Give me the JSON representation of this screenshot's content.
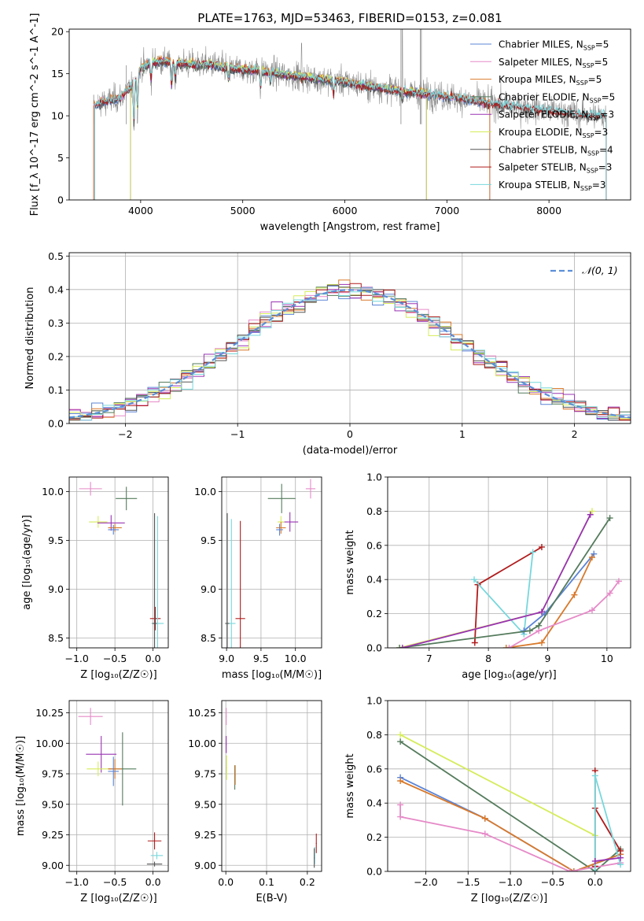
{
  "figure_title": "PLATE=1763, MJD=53463, FIBERID=0153, z=0.081",
  "model_colors": {
    "Chabrier MILES": "#5b84d6",
    "Salpeter MILES": "#e68ac8",
    "Kroupa MILES": "#d9792a",
    "Chabrier ELODIE": "#547b5c",
    "Salpeter ELODIE": "#9933b3",
    "Kroupa ELODIE": "#d6ec5a",
    "Chabrier STELIB": "#555555",
    "Salpeter STELIB": "#b01c1c",
    "Kroupa STELIB": "#77d7dc",
    "data": "#888888"
  },
  "chart_data": [
    {
      "id": "spectrum",
      "type": "line",
      "title": "PLATE=1763, MJD=53463, FIBERID=0153, z=0.081",
      "xlabel": "wavelength [Angstrom, rest frame]",
      "ylabel": "Flux [f_λ 10^-17 erg cm^-2 s^-1 A^-1]",
      "xlim": [
        3300,
        8800
      ],
      "ylim": [
        0,
        20.3
      ],
      "xticks": [
        4000,
        5000,
        6000,
        7000,
        8000
      ],
      "yticks": [
        0,
        5,
        10,
        15,
        20
      ],
      "grid": false,
      "legend_position": "top-right",
      "legend": [
        {
          "base": "Chabrier MILES, N",
          "n": "5",
          "color": "#5b84d6"
        },
        {
          "base": "Salpeter MILES, N",
          "n": "5",
          "color": "#e68ac8"
        },
        {
          "base": "Kroupa MILES, N",
          "n": "5",
          "color": "#d9792a"
        },
        {
          "base": "Chabrier ELODIE, N",
          "n": "5",
          "color": "#547b5c"
        },
        {
          "base": "Salpeter ELODIE, N",
          "n": "3",
          "color": "#9933b3"
        },
        {
          "base": "Kroupa ELODIE, N",
          "n": "3",
          "color": "#d6ec5a"
        },
        {
          "base": "Chabrier STELIB, N",
          "n": "4",
          "color": "#555555"
        },
        {
          "base": "Salpeter STELIB, N",
          "n": "3",
          "color": "#b01c1c"
        },
        {
          "base": "Kroupa STELIB, N",
          "n": "3",
          "color": "#77d7dc"
        }
      ],
      "legend_sub": "SSP",
      "continuum": {
        "x": [
          3500,
          3600,
          3700,
          3800,
          3900,
          4000,
          4100,
          4200,
          4300,
          4400,
          4500,
          4600,
          4700,
          4800,
          4900,
          5000,
          5200,
          5400,
          5600,
          5800,
          6000,
          6200,
          6400,
          6600,
          6800,
          7000,
          7200,
          7400,
          7600,
          7800,
          8000,
          8200,
          8400,
          8600,
          8800
        ],
        "y": [
          11.0,
          11.5,
          11.8,
          12.2,
          13.3,
          15.6,
          16.3,
          16.5,
          16.4,
          16.2,
          16.1,
          16.1,
          16.1,
          15.8,
          15.6,
          15.5,
          15.3,
          14.9,
          14.6,
          14.3,
          14.0,
          13.6,
          13.2,
          12.9,
          12.6,
          12.3,
          11.9,
          11.5,
          11.2,
          10.9,
          10.6,
          10.3,
          10.1,
          9.9,
          9.8
        ]
      },
      "data_series_label": "data"
    },
    {
      "id": "residuals",
      "type": "line",
      "xlabel": "(data-model)/error",
      "ylabel": "Normed distribution",
      "xlim": [
        -2.5,
        2.5
      ],
      "ylim": [
        0,
        0.51
      ],
      "xticks": [
        -2,
        -1,
        0,
        1,
        2
      ],
      "yticks": [
        0.0,
        0.1,
        0.2,
        0.3,
        0.4,
        0.5
      ],
      "grid": true,
      "legend_position": "top-right",
      "normal_label": "𝒩(0, 1)",
      "normal_color": "#5b8fd8"
    },
    {
      "id": "age-Z",
      "type": "scatter",
      "xlabel": "Z [log₁₀(Z/Z☉)]",
      "ylabel": "age  [log₁₀(age/yr)]",
      "xlim": [
        -1.1,
        0.2
      ],
      "ylim": [
        8.4,
        10.15
      ],
      "xticks": [
        -1.0,
        -0.5,
        0.0
      ],
      "yticks": [
        8.5,
        9.0,
        9.5,
        10.0
      ],
      "grid": true,
      "points": [
        {
          "model": "Salpeter MILES",
          "x": -0.82,
          "y": 10.03,
          "xerr": 0.15,
          "yerr": 0.07
        },
        {
          "model": "Chabrier ELODIE",
          "x": -0.35,
          "y": 9.93,
          "xerr": 0.14,
          "yerr": 0.12
        },
        {
          "model": "Kroupa ELODIE",
          "x": -0.72,
          "y": 9.69,
          "xerr": 0.12,
          "yerr": 0.06
        },
        {
          "model": "Salpeter ELODIE",
          "x": -0.55,
          "y": 9.68,
          "xerr": 0.18,
          "yerr": 0.08
        },
        {
          "model": "Kroupa MILES",
          "x": -0.5,
          "y": 9.63,
          "xerr": 0.09,
          "yerr": 0.04
        },
        {
          "model": "Chabrier MILES",
          "x": -0.52,
          "y": 9.61,
          "xerr": 0.07,
          "yerr": 0.05
        },
        {
          "model": "Salpeter STELIB",
          "x": 0.03,
          "y": 8.7,
          "xerr": 0.07,
          "yerr": 0.12
        },
        {
          "model": "Kroupa STELIB",
          "x": 0.06,
          "y": 8.65,
          "xerr": 0.08,
          "yerr": 1.1
        },
        {
          "model": "Chabrier STELIB",
          "x": 0.02,
          "y": 8.65,
          "xerr": 0.03,
          "yerr": 1.13
        }
      ]
    },
    {
      "id": "age-mass",
      "type": "scatter",
      "xlabel": "mass [log₁₀(M/M☉)]",
      "ylabel": "",
      "xlim": [
        8.93,
        10.38
      ],
      "ylim": [
        8.4,
        10.15
      ],
      "xticks": [
        9.0,
        9.5,
        10.0
      ],
      "yticks": [
        8.5,
        9.0,
        9.5,
        10.0
      ],
      "grid": true,
      "points": [
        {
          "model": "Salpeter MILES",
          "x": 10.22,
          "y": 10.03,
          "xerr": 0.07,
          "yerr": 0.1
        },
        {
          "model": "Chabrier ELODIE",
          "x": 9.8,
          "y": 9.93,
          "xerr": 0.2,
          "yerr": 0.15
        },
        {
          "model": "Salpeter ELODIE",
          "x": 9.92,
          "y": 9.69,
          "xerr": 0.12,
          "yerr": 0.1
        },
        {
          "model": "Kroupa ELODIE",
          "x": 9.79,
          "y": 9.69,
          "xerr": 0.05,
          "yerr": 0.06
        },
        {
          "model": "Kroupa MILES",
          "x": 9.79,
          "y": 9.63,
          "xerr": 0.07,
          "yerr": 0.06
        },
        {
          "model": "Chabrier MILES",
          "x": 9.77,
          "y": 9.61,
          "xerr": 0.05,
          "yerr": 0.06
        },
        {
          "model": "Salpeter STELIB",
          "x": 9.2,
          "y": 8.7,
          "xerr": 0.07,
          "yerr": 1.0
        },
        {
          "model": "Kroupa STELIB",
          "x": 9.07,
          "y": 8.65,
          "xerr": 0.06,
          "yerr": 1.07
        },
        {
          "model": "Chabrier STELIB",
          "x": 9.01,
          "y": 8.65,
          "xerr": 0.03,
          "yerr": 1.13
        }
      ]
    },
    {
      "id": "weight-age",
      "type": "line",
      "xlabel": "age  [log₁₀(age/yr)]",
      "ylabel": "mass weight",
      "xlim": [
        6.3,
        10.4
      ],
      "ylim": [
        0,
        1.0
      ],
      "xticks": [
        7,
        8,
        9,
        10
      ],
      "yticks": [
        0.0,
        0.2,
        0.4,
        0.6,
        0.8,
        1.0
      ],
      "grid": true,
      "series": [
        {
          "model": "Salpeter STELIB",
          "x": [
            7.77,
            7.82,
            8.9,
            7.82
          ],
          "y": [
            0.03,
            0.37,
            0.59,
            0.37
          ]
        },
        {
          "model": "Kroupa STELIB",
          "x": [
            7.76,
            8.6,
            8.75
          ],
          "y": [
            0.4,
            0.08,
            0.56
          ]
        },
        {
          "model": "Chabrier MILES",
          "x": [
            8.6,
            8.95,
            9.78
          ],
          "y": [
            0.1,
            0.2,
            0.55
          ]
        },
        {
          "model": "Kroupa MILES",
          "x": [
            8.3,
            8.9,
            9.45,
            9.75
          ],
          "y": [
            0.0,
            0.03,
            0.31,
            0.53
          ]
        },
        {
          "model": "Salpeter MILES",
          "x": [
            8.35,
            8.85,
            9.75,
            10.05,
            10.2
          ],
          "y": [
            0.0,
            0.1,
            0.22,
            0.32,
            0.39
          ]
        },
        {
          "model": "Kroupa ELODIE",
          "x": [
            6.5,
            8.9,
            9.75
          ],
          "y": [
            0.0,
            0.21,
            0.8
          ]
        },
        {
          "model": "Chabrier ELODIE",
          "x": [
            6.5,
            8.7,
            8.85,
            10.05
          ],
          "y": [
            0.0,
            0.1,
            0.13,
            0.76
          ]
        },
        {
          "model": "Salpeter ELODIE",
          "x": [
            6.55,
            8.9,
            9.72
          ],
          "y": [
            0.0,
            0.21,
            0.78
          ]
        }
      ]
    },
    {
      "id": "mass-Z",
      "type": "scatter",
      "xlabel": "Z [log₁₀(Z/Z☉)]",
      "ylabel": "mass [log₁₀(M/M☉)]",
      "xlim": [
        -1.1,
        0.2
      ],
      "ylim": [
        8.95,
        10.35
      ],
      "xticks": [
        -1.0,
        -0.5,
        0.0
      ],
      "yticks": [
        9.0,
        9.25,
        9.5,
        9.75,
        10.0,
        10.25
      ],
      "grid": true,
      "points": [
        {
          "model": "Salpeter MILES",
          "x": -0.82,
          "y": 10.22,
          "xerr": 0.16,
          "yerr": 0.07
        },
        {
          "model": "Salpeter ELODIE",
          "x": -0.68,
          "y": 9.91,
          "xerr": 0.2,
          "yerr": 0.15
        },
        {
          "model": "Kroupa ELODIE",
          "x": -0.72,
          "y": 9.79,
          "xerr": 0.15,
          "yerr": 0.06
        },
        {
          "model": "Chabrier ELODIE",
          "x": -0.4,
          "y": 9.79,
          "xerr": 0.18,
          "yerr": 0.3
        },
        {
          "model": "Kroupa MILES",
          "x": -0.5,
          "y": 9.79,
          "xerr": 0.09,
          "yerr": 0.08
        },
        {
          "model": "Chabrier MILES",
          "x": -0.52,
          "y": 9.77,
          "xerr": 0.07,
          "yerr": 0.12
        },
        {
          "model": "Salpeter STELIB",
          "x": 0.02,
          "y": 9.2,
          "xerr": 0.09,
          "yerr": 0.07
        },
        {
          "model": "Kroupa STELIB",
          "x": 0.05,
          "y": 9.08,
          "xerr": 0.08,
          "yerr": 0.03
        },
        {
          "model": "Chabrier STELIB",
          "x": 0.02,
          "y": 9.01,
          "xerr": 0.1,
          "yerr": 0.02
        }
      ]
    },
    {
      "id": "mass-ebv",
      "type": "scatter",
      "xlabel": "E(B-V)",
      "ylabel": "",
      "xlim": [
        -0.01,
        0.235
      ],
      "ylim": [
        8.95,
        10.35
      ],
      "xticks": [
        0.0,
        0.1,
        0.2
      ],
      "yticks": [
        9.0,
        9.25,
        9.5,
        9.75,
        10.0,
        10.25
      ],
      "grid": true,
      "points": [
        {
          "model": "Salpeter MILES",
          "x": 0.001,
          "y": 10.22,
          "xerr": 0.001,
          "yerr": 0.07
        },
        {
          "model": "Salpeter ELODIE",
          "x": 0.001,
          "y": 9.99,
          "xerr": 0.001,
          "yerr": 0.07
        },
        {
          "model": "Kroupa ELODIE",
          "x": 0.002,
          "y": 9.8,
          "xerr": 0.001,
          "yerr": 0.1
        },
        {
          "model": "Chabrier ELODIE",
          "x": 0.022,
          "y": 9.72,
          "xerr": 0.001,
          "yerr": 0.1
        },
        {
          "model": "Kroupa MILES",
          "x": 0.023,
          "y": 9.74,
          "xerr": 0.001,
          "yerr": 0.08
        },
        {
          "model": "Salpeter STELIB",
          "x": 0.222,
          "y": 9.18,
          "xerr": 0.001,
          "yerr": 0.08
        },
        {
          "model": "Kroupa STELIB",
          "x": 0.218,
          "y": 9.08,
          "xerr": 0.001,
          "yerr": 0.07
        },
        {
          "model": "Chabrier STELIB",
          "x": 0.217,
          "y": 9.06,
          "xerr": 0.001,
          "yerr": 0.08
        }
      ]
    },
    {
      "id": "weight-Z",
      "type": "line",
      "xlabel": "Z [log₁₀(Z/Z☉)]",
      "ylabel": "mass weight",
      "xlim": [
        -2.45,
        0.42
      ],
      "ylim": [
        0,
        1.0
      ],
      "xticks": [
        -2.0,
        -1.5,
        -1.0,
        -0.5,
        0.0
      ],
      "yticks": [
        0.0,
        0.2,
        0.4,
        0.6,
        0.8,
        1.0
      ],
      "grid": true,
      "series": [
        {
          "model": "Kroupa ELODIE",
          "x": [
            -2.3,
            0.0
          ],
          "y": [
            0.8,
            0.21
          ]
        },
        {
          "model": "Chabrier ELODIE",
          "x": [
            -2.3,
            0.0,
            0.3
          ],
          "y": [
            0.76,
            0.0,
            0.13
          ]
        },
        {
          "model": "Chabrier MILES",
          "x": [
            -2.3,
            -1.3,
            -0.25,
            0.3
          ],
          "y": [
            0.55,
            0.31,
            0.0,
            0.1
          ]
        },
        {
          "model": "Kroupa MILES",
          "x": [
            -2.3,
            -1.3,
            -0.25,
            0.3
          ],
          "y": [
            0.53,
            0.31,
            0.0,
            0.1
          ]
        },
        {
          "model": "Salpeter MILES",
          "x": [
            -2.3,
            -2.3,
            -1.3,
            -0.3,
            0.3
          ],
          "y": [
            0.39,
            0.32,
            0.22,
            0.0,
            0.05
          ]
        },
        {
          "model": "Salpeter STELIB",
          "x": [
            0.0,
            0.0,
            0.0,
            0.3
          ],
          "y": [
            0.03,
            0.59,
            0.37,
            0.12
          ]
        },
        {
          "model": "Kroupa STELIB",
          "x": [
            0.0,
            0.0,
            0.3
          ],
          "y": [
            0.0,
            0.56,
            0.04
          ]
        },
        {
          "model": "Salpeter ELODIE",
          "x": [
            0.0,
            0.3
          ],
          "y": [
            0.06,
            0.08
          ]
        }
      ]
    }
  ]
}
